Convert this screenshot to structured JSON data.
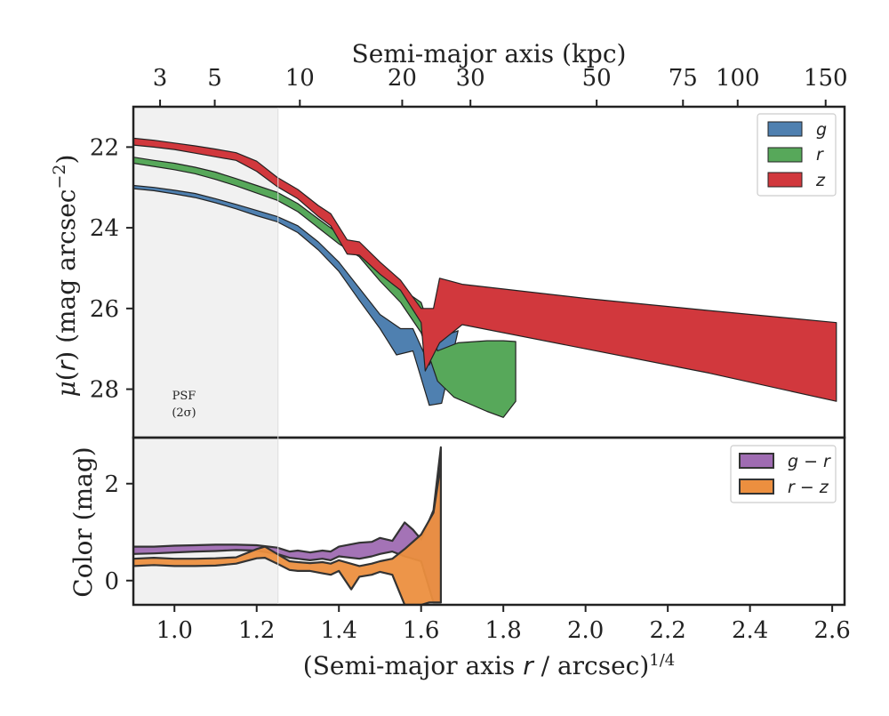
{
  "colors": {
    "g": "#4f80b0",
    "r": "#57a85a",
    "z": "#d1383d",
    "g_minus_r": "#9f6cb2",
    "r_minus_z": "#ec8f3f",
    "psf_band": "#f1f1f1",
    "frame": "#222222"
  },
  "chart_data": [
    {
      "type": "area",
      "panel": "surface-brightness",
      "title": "",
      "xlabel_top": "Semi-major axis (kpc)",
      "ylabel": "μ(r) (mag arcsec⁻²)",
      "xlim": [
        0.9,
        2.63
      ],
      "ylim": [
        29.2,
        21.0
      ],
      "y_inverted": true,
      "yticks": [
        22,
        24,
        26,
        28
      ],
      "ytick_labels": [
        "22",
        "24",
        "26",
        "28"
      ],
      "top_ticks_kpc": [
        3,
        5,
        10,
        20,
        30,
        50,
        75,
        100,
        150
      ],
      "top_tick_labels": [
        "3",
        "5",
        "10",
        "20",
        "30",
        "50",
        "75",
        "100",
        "150"
      ],
      "top_tick_positions": [
        0.965,
        1.098,
        1.305,
        1.554,
        1.72,
        2.027,
        2.237,
        2.37,
        2.584
      ],
      "psf_band": {
        "xmax": 1.252,
        "label_line1": "PSF",
        "label_line2": "(2σ)"
      },
      "legend": {
        "placement": "top-right",
        "entries": [
          "g",
          "r",
          "z"
        ]
      },
      "series": [
        {
          "name": "g",
          "upper": [
            [
              0.9,
              22.95
            ],
            [
              0.95,
              23.0
            ],
            [
              1.0,
              23.07
            ],
            [
              1.05,
              23.15
            ],
            [
              1.1,
              23.28
            ],
            [
              1.15,
              23.42
            ],
            [
              1.2,
              23.57
            ],
            [
              1.25,
              23.72
            ],
            [
              1.3,
              23.95
            ],
            [
              1.35,
              24.35
            ],
            [
              1.4,
              24.85
            ],
            [
              1.45,
              25.5
            ],
            [
              1.5,
              26.15
            ],
            [
              1.55,
              26.5
            ],
            [
              1.58,
              26.5
            ],
            [
              1.62,
              27.4
            ],
            [
              1.65,
              26.7
            ],
            [
              1.69,
              26.55
            ]
          ],
          "lower": [
            [
              0.9,
              23.03
            ],
            [
              0.95,
              23.08
            ],
            [
              1.0,
              23.16
            ],
            [
              1.05,
              23.25
            ],
            [
              1.1,
              23.38
            ],
            [
              1.15,
              23.53
            ],
            [
              1.2,
              23.7
            ],
            [
              1.25,
              23.85
            ],
            [
              1.3,
              24.12
            ],
            [
              1.35,
              24.55
            ],
            [
              1.4,
              25.08
            ],
            [
              1.45,
              25.8
            ],
            [
              1.5,
              26.5
            ],
            [
              1.54,
              27.15
            ],
            [
              1.58,
              27.05
            ],
            [
              1.62,
              28.4
            ],
            [
              1.65,
              28.35
            ],
            [
              1.69,
              26.55
            ]
          ]
        },
        {
          "name": "r",
          "upper": [
            [
              0.9,
              22.25
            ],
            [
              0.95,
              22.33
            ],
            [
              1.0,
              22.4
            ],
            [
              1.05,
              22.5
            ],
            [
              1.1,
              22.62
            ],
            [
              1.15,
              22.78
            ],
            [
              1.2,
              22.95
            ],
            [
              1.25,
              23.12
            ],
            [
              1.3,
              23.4
            ],
            [
              1.35,
              23.78
            ],
            [
              1.4,
              24.15
            ],
            [
              1.45,
              24.55
            ],
            [
              1.5,
              25.1
            ],
            [
              1.55,
              25.5
            ],
            [
              1.6,
              25.85
            ],
            [
              1.64,
              27.05
            ],
            [
              1.69,
              26.85
            ],
            [
              1.76,
              26.8
            ],
            [
              1.8,
              26.8
            ],
            [
              1.83,
              26.82
            ]
          ],
          "lower": [
            [
              0.9,
              22.4
            ],
            [
              0.95,
              22.48
            ],
            [
              1.0,
              22.56
            ],
            [
              1.05,
              22.66
            ],
            [
              1.1,
              22.8
            ],
            [
              1.15,
              22.96
            ],
            [
              1.2,
              23.14
            ],
            [
              1.25,
              23.32
            ],
            [
              1.3,
              23.6
            ],
            [
              1.35,
              24.0
            ],
            [
              1.4,
              24.4
            ],
            [
              1.45,
              24.72
            ],
            [
              1.5,
              25.32
            ],
            [
              1.55,
              25.85
            ],
            [
              1.6,
              26.6
            ],
            [
              1.64,
              27.8
            ],
            [
              1.68,
              28.2
            ],
            [
              1.76,
              28.55
            ],
            [
              1.8,
              28.7
            ],
            [
              1.83,
              28.3
            ]
          ]
        },
        {
          "name": "z",
          "upper": [
            [
              0.9,
              21.78
            ],
            [
              0.95,
              21.83
            ],
            [
              1.0,
              21.9
            ],
            [
              1.05,
              21.97
            ],
            [
              1.1,
              22.05
            ],
            [
              1.15,
              22.14
            ],
            [
              1.2,
              22.35
            ],
            [
              1.25,
              22.75
            ],
            [
              1.3,
              23.05
            ],
            [
              1.35,
              23.45
            ],
            [
              1.38,
              23.65
            ],
            [
              1.42,
              24.3
            ],
            [
              1.45,
              24.35
            ],
            [
              1.5,
              24.85
            ],
            [
              1.55,
              25.3
            ],
            [
              1.6,
              26.0
            ],
            [
              1.63,
              26.0
            ],
            [
              1.645,
              25.25
            ],
            [
              1.7,
              25.4
            ],
            [
              2.0,
              25.75
            ],
            [
              2.3,
              26.05
            ],
            [
              2.61,
              26.35
            ]
          ],
          "lower": [
            [
              0.9,
              21.95
            ],
            [
              0.95,
              22.0
            ],
            [
              1.0,
              22.06
            ],
            [
              1.05,
              22.15
            ],
            [
              1.1,
              22.24
            ],
            [
              1.15,
              22.33
            ],
            [
              1.2,
              22.6
            ],
            [
              1.25,
              22.98
            ],
            [
              1.3,
              23.28
            ],
            [
              1.35,
              23.72
            ],
            [
              1.38,
              23.95
            ],
            [
              1.42,
              24.65
            ],
            [
              1.45,
              24.68
            ],
            [
              1.5,
              25.15
            ],
            [
              1.55,
              25.55
            ],
            [
              1.6,
              26.35
            ],
            [
              1.61,
              27.55
            ],
            [
              1.645,
              26.85
            ],
            [
              1.7,
              26.4
            ],
            [
              2.0,
              27.0
            ],
            [
              2.3,
              27.6
            ],
            [
              2.61,
              28.3
            ]
          ]
        }
      ]
    },
    {
      "type": "area",
      "panel": "color",
      "xlabel": "(Semi-major axis r / arcsec)^1/4",
      "ylabel": "Color (mag)",
      "xlim": [
        0.9,
        2.63
      ],
      "ylim": [
        -0.5,
        2.95
      ],
      "yticks": [
        0,
        2
      ],
      "ytick_labels": [
        "0",
        "2"
      ],
      "xticks": [
        1.0,
        1.2,
        1.4,
        1.6,
        1.8,
        2.0,
        2.2,
        2.4,
        2.6
      ],
      "xtick_labels": [
        "1.0",
        "1.2",
        "1.4",
        "1.6",
        "1.8",
        "2.0",
        "2.2",
        "2.4",
        "2.6"
      ],
      "legend": {
        "placement": "top-right",
        "entries": [
          "g − r",
          "r − z"
        ]
      },
      "series": [
        {
          "name": "g − r",
          "upper": [
            [
              0.9,
              0.7
            ],
            [
              0.95,
              0.7
            ],
            [
              1.0,
              0.72
            ],
            [
              1.05,
              0.73
            ],
            [
              1.1,
              0.74
            ],
            [
              1.15,
              0.74
            ],
            [
              1.2,
              0.73
            ],
            [
              1.25,
              0.68
            ],
            [
              1.28,
              0.6
            ],
            [
              1.3,
              0.62
            ],
            [
              1.33,
              0.58
            ],
            [
              1.36,
              0.62
            ],
            [
              1.38,
              0.6
            ],
            [
              1.4,
              0.7
            ],
            [
              1.45,
              0.78
            ],
            [
              1.48,
              0.8
            ],
            [
              1.5,
              0.88
            ],
            [
              1.53,
              0.82
            ],
            [
              1.56,
              1.2
            ],
            [
              1.58,
              1.05
            ],
            [
              1.6,
              0.85
            ],
            [
              1.63,
              1.45
            ],
            [
              1.648,
              2.75
            ]
          ],
          "lower": [
            [
              0.9,
              0.55
            ],
            [
              0.95,
              0.56
            ],
            [
              1.0,
              0.58
            ],
            [
              1.05,
              0.6
            ],
            [
              1.1,
              0.61
            ],
            [
              1.15,
              0.63
            ],
            [
              1.2,
              0.62
            ],
            [
              1.25,
              0.55
            ],
            [
              1.28,
              0.47
            ],
            [
              1.3,
              0.45
            ],
            [
              1.33,
              0.42
            ],
            [
              1.36,
              0.45
            ],
            [
              1.38,
              0.42
            ],
            [
              1.4,
              0.5
            ],
            [
              1.45,
              0.45
            ],
            [
              1.48,
              0.5
            ],
            [
              1.5,
              0.55
            ],
            [
              1.53,
              0.6
            ],
            [
              1.56,
              0.5
            ],
            [
              1.58,
              0.45
            ],
            [
              1.6,
              0.4
            ],
            [
              1.63,
              -0.45
            ],
            [
              1.648,
              -0.45
            ]
          ]
        },
        {
          "name": "r − z",
          "upper": [
            [
              0.9,
              0.45
            ],
            [
              0.95,
              0.47
            ],
            [
              1.0,
              0.45
            ],
            [
              1.05,
              0.45
            ],
            [
              1.1,
              0.46
            ],
            [
              1.15,
              0.48
            ],
            [
              1.2,
              0.65
            ],
            [
              1.22,
              0.7
            ],
            [
              1.25,
              0.55
            ],
            [
              1.28,
              0.4
            ],
            [
              1.3,
              0.38
            ],
            [
              1.33,
              0.36
            ],
            [
              1.36,
              0.38
            ],
            [
              1.38,
              0.35
            ],
            [
              1.4,
              0.42
            ],
            [
              1.45,
              0.3
            ],
            [
              1.48,
              0.35
            ],
            [
              1.5,
              0.4
            ],
            [
              1.53,
              0.45
            ],
            [
              1.56,
              0.65
            ],
            [
              1.6,
              0.95
            ],
            [
              1.63,
              1.4
            ],
            [
              1.648,
              2.4
            ]
          ],
          "lower": [
            [
              0.9,
              0.3
            ],
            [
              0.95,
              0.32
            ],
            [
              1.0,
              0.3
            ],
            [
              1.05,
              0.3
            ],
            [
              1.1,
              0.31
            ],
            [
              1.15,
              0.35
            ],
            [
              1.2,
              0.46
            ],
            [
              1.22,
              0.47
            ],
            [
              1.25,
              0.35
            ],
            [
              1.28,
              0.22
            ],
            [
              1.3,
              0.2
            ],
            [
              1.33,
              0.2
            ],
            [
              1.36,
              0.15
            ],
            [
              1.38,
              0.12
            ],
            [
              1.4,
              0.2
            ],
            [
              1.43,
              -0.18
            ],
            [
              1.45,
              0.08
            ],
            [
              1.48,
              0.12
            ],
            [
              1.5,
              0.18
            ],
            [
              1.53,
              0.12
            ],
            [
              1.56,
              -0.5
            ],
            [
              1.6,
              -0.5
            ],
            [
              1.62,
              -0.45
            ],
            [
              1.648,
              -0.45
            ]
          ]
        }
      ]
    }
  ]
}
